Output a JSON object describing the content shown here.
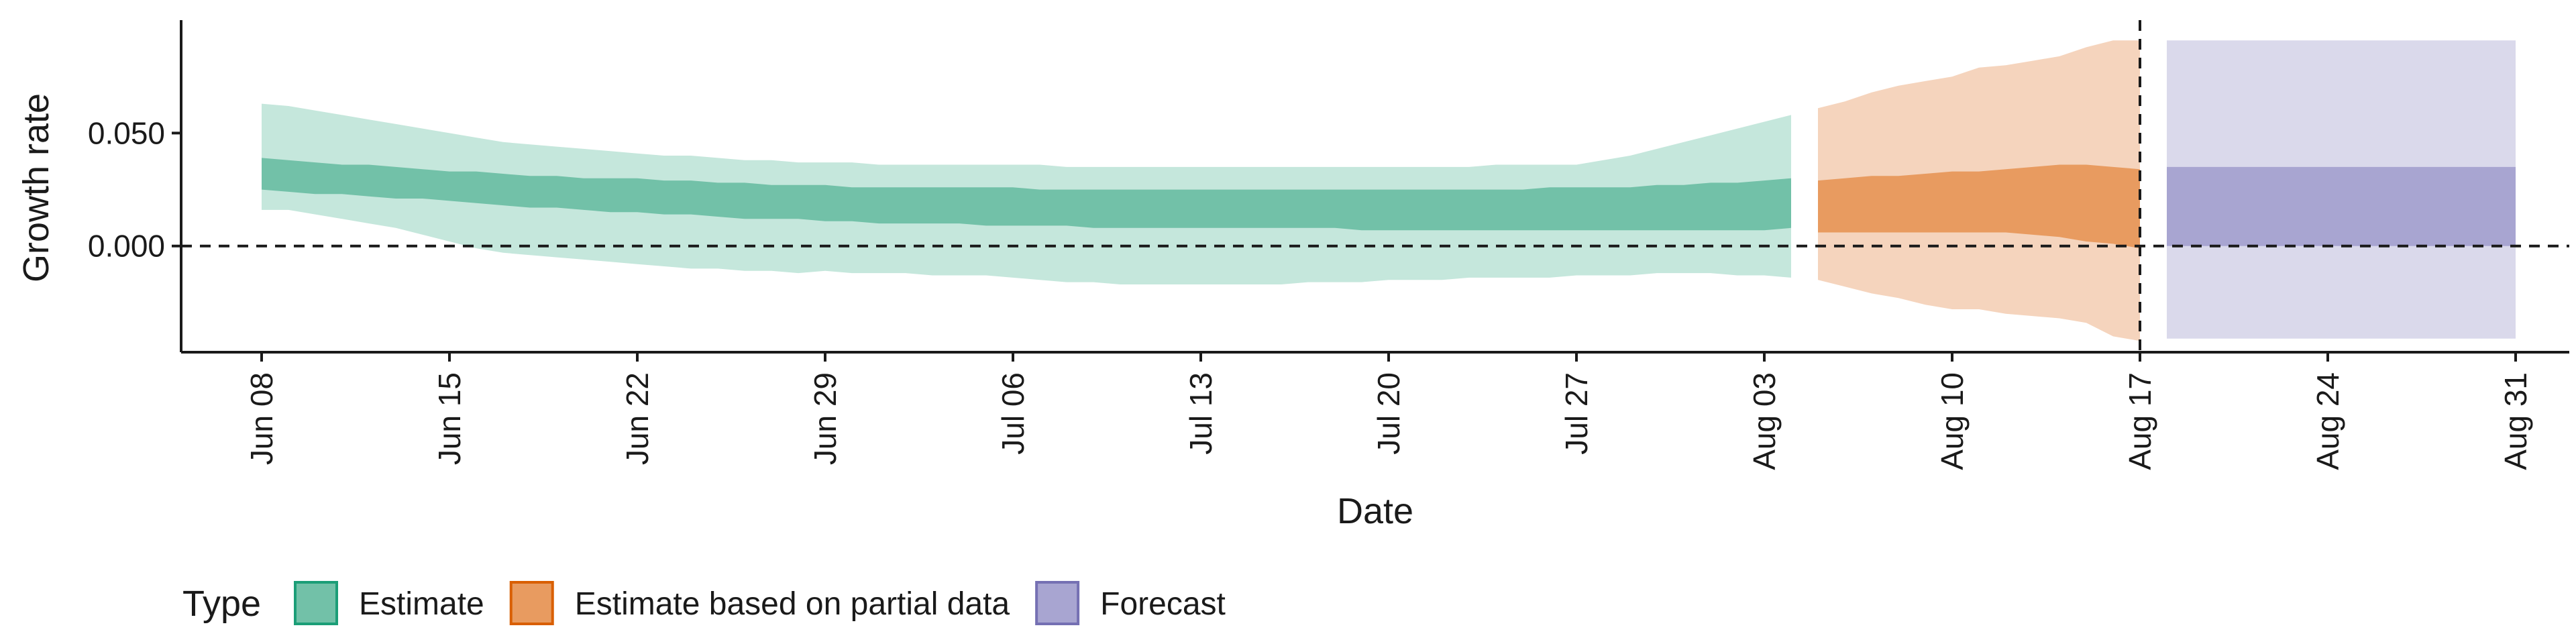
{
  "chart_data": {
    "type": "area",
    "xlabel": "Date",
    "ylabel": "Growth rate",
    "x_range": [
      "2020-06-05",
      "2020-09-02"
    ],
    "ylim": [
      -0.047,
      0.1
    ],
    "y_ticks": [
      {
        "value": 0.0,
        "label": "0.000"
      },
      {
        "value": 0.05,
        "label": "0.050"
      }
    ],
    "x_ticks": [
      {
        "date": "2020-06-08",
        "label": "Jun 08"
      },
      {
        "date": "2020-06-15",
        "label": "Jun 15"
      },
      {
        "date": "2020-06-22",
        "label": "Jun 22"
      },
      {
        "date": "2020-06-29",
        "label": "Jun 29"
      },
      {
        "date": "2020-07-06",
        "label": "Jul 06"
      },
      {
        "date": "2020-07-13",
        "label": "Jul 13"
      },
      {
        "date": "2020-07-20",
        "label": "Jul 20"
      },
      {
        "date": "2020-07-27",
        "label": "Jul 27"
      },
      {
        "date": "2020-08-03",
        "label": "Aug 03"
      },
      {
        "date": "2020-08-10",
        "label": "Aug 10"
      },
      {
        "date": "2020-08-17",
        "label": "Aug 17"
      },
      {
        "date": "2020-08-24",
        "label": "Aug 24"
      },
      {
        "date": "2020-08-31",
        "label": "Aug 31"
      }
    ],
    "reference_lines": [
      {
        "axis": "y",
        "value": 0.0,
        "style": "dashed"
      },
      {
        "axis": "x",
        "date": "2020-08-17",
        "style": "dashed"
      }
    ],
    "grid": false,
    "legend": {
      "title": "Type",
      "position": "bottom-left",
      "entries": [
        {
          "label": "Estimate",
          "color": "#72c1a8",
          "border": "#1b9e77"
        },
        {
          "label": "Estimate based on partial data",
          "color": "#e89b60",
          "border": "#d95f02"
        },
        {
          "label": "Forecast",
          "color": "#a8a5d1",
          "border": "#7570b3"
        }
      ]
    },
    "series": [
      {
        "name": "Estimate",
        "inner_color": "#72c1a8",
        "outer_color": "#c5e7dc",
        "x": [
          "2020-06-08",
          "2020-06-09",
          "2020-06-10",
          "2020-06-11",
          "2020-06-12",
          "2020-06-13",
          "2020-06-14",
          "2020-06-15",
          "2020-06-16",
          "2020-06-17",
          "2020-06-18",
          "2020-06-19",
          "2020-06-20",
          "2020-06-21",
          "2020-06-22",
          "2020-06-23",
          "2020-06-24",
          "2020-06-25",
          "2020-06-26",
          "2020-06-27",
          "2020-06-28",
          "2020-06-29",
          "2020-06-30",
          "2020-07-01",
          "2020-07-02",
          "2020-07-03",
          "2020-07-04",
          "2020-07-05",
          "2020-07-06",
          "2020-07-07",
          "2020-07-08",
          "2020-07-09",
          "2020-07-10",
          "2020-07-11",
          "2020-07-12",
          "2020-07-13",
          "2020-07-14",
          "2020-07-15",
          "2020-07-16",
          "2020-07-17",
          "2020-07-18",
          "2020-07-19",
          "2020-07-20",
          "2020-07-21",
          "2020-07-22",
          "2020-07-23",
          "2020-07-24",
          "2020-07-25",
          "2020-07-26",
          "2020-07-27",
          "2020-07-28",
          "2020-07-29",
          "2020-07-30",
          "2020-07-31",
          "2020-08-01",
          "2020-08-02",
          "2020-08-03",
          "2020-08-04"
        ],
        "lower_90": [
          0.016,
          0.016,
          0.014,
          0.012,
          0.01,
          0.008,
          0.005,
          0.002,
          -0.001,
          -0.003,
          -0.004,
          -0.005,
          -0.006,
          -0.007,
          -0.008,
          -0.009,
          -0.01,
          -0.01,
          -0.011,
          -0.011,
          -0.012,
          -0.011,
          -0.012,
          -0.012,
          -0.012,
          -0.013,
          -0.013,
          -0.013,
          -0.014,
          -0.015,
          -0.016,
          -0.016,
          -0.017,
          -0.017,
          -0.017,
          -0.017,
          -0.017,
          -0.017,
          -0.017,
          -0.016,
          -0.016,
          -0.016,
          -0.015,
          -0.015,
          -0.015,
          -0.014,
          -0.014,
          -0.014,
          -0.014,
          -0.013,
          -0.013,
          -0.013,
          -0.012,
          -0.012,
          -0.012,
          -0.013,
          -0.013,
          -0.014
        ],
        "lower_50": [
          0.025,
          0.024,
          0.023,
          0.023,
          0.022,
          0.021,
          0.021,
          0.02,
          0.019,
          0.018,
          0.017,
          0.017,
          0.016,
          0.015,
          0.015,
          0.014,
          0.014,
          0.013,
          0.012,
          0.012,
          0.012,
          0.011,
          0.011,
          0.01,
          0.01,
          0.01,
          0.01,
          0.009,
          0.009,
          0.009,
          0.009,
          0.008,
          0.008,
          0.008,
          0.008,
          0.008,
          0.008,
          0.008,
          0.008,
          0.008,
          0.008,
          0.007,
          0.007,
          0.007,
          0.007,
          0.007,
          0.007,
          0.007,
          0.007,
          0.007,
          0.007,
          0.007,
          0.007,
          0.007,
          0.007,
          0.007,
          0.007,
          0.008
        ],
        "upper_50": [
          0.039,
          0.038,
          0.037,
          0.036,
          0.036,
          0.035,
          0.034,
          0.033,
          0.033,
          0.032,
          0.031,
          0.031,
          0.03,
          0.03,
          0.03,
          0.029,
          0.029,
          0.028,
          0.028,
          0.027,
          0.027,
          0.027,
          0.026,
          0.026,
          0.026,
          0.026,
          0.026,
          0.026,
          0.026,
          0.025,
          0.025,
          0.025,
          0.025,
          0.025,
          0.025,
          0.025,
          0.025,
          0.025,
          0.025,
          0.025,
          0.025,
          0.025,
          0.025,
          0.025,
          0.025,
          0.025,
          0.025,
          0.025,
          0.026,
          0.026,
          0.026,
          0.026,
          0.027,
          0.027,
          0.028,
          0.028,
          0.029,
          0.03
        ],
        "upper_90": [
          0.063,
          0.062,
          0.06,
          0.058,
          0.056,
          0.054,
          0.052,
          0.05,
          0.048,
          0.046,
          0.045,
          0.044,
          0.043,
          0.042,
          0.041,
          0.04,
          0.04,
          0.039,
          0.038,
          0.038,
          0.037,
          0.037,
          0.037,
          0.036,
          0.036,
          0.036,
          0.036,
          0.036,
          0.036,
          0.036,
          0.035,
          0.035,
          0.035,
          0.035,
          0.035,
          0.035,
          0.035,
          0.035,
          0.035,
          0.035,
          0.035,
          0.035,
          0.035,
          0.035,
          0.035,
          0.035,
          0.036,
          0.036,
          0.036,
          0.036,
          0.038,
          0.04,
          0.043,
          0.046,
          0.049,
          0.052,
          0.055,
          0.058
        ]
      },
      {
        "name": "Estimate based on partial data",
        "inner_color": "#e89b60",
        "outer_color": "#f5d4bd",
        "x": [
          "2020-08-05",
          "2020-08-06",
          "2020-08-07",
          "2020-08-08",
          "2020-08-09",
          "2020-08-10",
          "2020-08-11",
          "2020-08-12",
          "2020-08-13",
          "2020-08-14",
          "2020-08-15",
          "2020-08-16",
          "2020-08-17"
        ],
        "lower_90": [
          -0.015,
          -0.018,
          -0.021,
          -0.023,
          -0.026,
          -0.028,
          -0.028,
          -0.03,
          -0.031,
          -0.032,
          -0.034,
          -0.04,
          -0.042
        ],
        "lower_50": [
          0.006,
          0.006,
          0.006,
          0.006,
          0.006,
          0.006,
          0.006,
          0.006,
          0.005,
          0.004,
          0.002,
          0.001,
          -0.001
        ],
        "upper_50": [
          0.029,
          0.03,
          0.031,
          0.031,
          0.032,
          0.033,
          0.033,
          0.034,
          0.035,
          0.036,
          0.036,
          0.035,
          0.034
        ],
        "upper_90": [
          0.061,
          0.064,
          0.068,
          0.071,
          0.073,
          0.075,
          0.079,
          0.08,
          0.082,
          0.084,
          0.088,
          0.091,
          0.091
        ]
      },
      {
        "name": "Forecast",
        "inner_color": "#a8a5d1",
        "outer_color": "#dad9eb",
        "x": [
          "2020-08-18",
          "2020-08-31"
        ],
        "lower_90": [
          -0.041,
          -0.041
        ],
        "lower_50": [
          0.0,
          0.0
        ],
        "upper_50": [
          0.035,
          0.035
        ],
        "upper_90": [
          0.091,
          0.091
        ]
      }
    ]
  }
}
